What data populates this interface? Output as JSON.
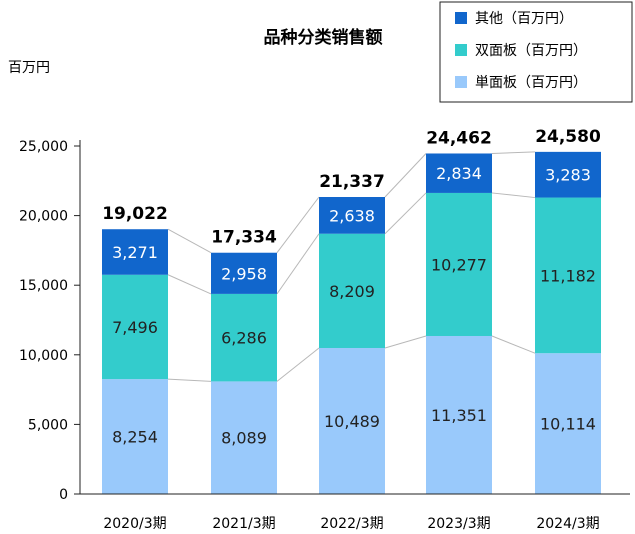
{
  "chart_data": {
    "type": "bar",
    "stacked": true,
    "title": "品种分类销售额",
    "ylabel": "百万円",
    "ylim": [
      0,
      25000
    ],
    "yticks": [
      0,
      5000,
      10000,
      15000,
      20000,
      25000
    ],
    "ytick_labels": [
      "0",
      "5,000",
      "10,000",
      "15,000",
      "20,000",
      "25,000"
    ],
    "categories": [
      "2020/3期",
      "2021/3期",
      "2022/3期",
      "2023/3期",
      "2024/3期"
    ],
    "series": [
      {
        "name": "単面板（百万円）",
        "color": "#99c9fb",
        "values": [
          8254,
          8089,
          10489,
          11351,
          10114
        ],
        "labels": [
          "8,254",
          "8,089",
          "10,489",
          "11,351",
          "10,114"
        ]
      },
      {
        "name": "双面板（百万円）",
        "color": "#33cccc",
        "values": [
          7496,
          6286,
          8209,
          10277,
          11182
        ],
        "labels": [
          "7,496",
          "6,286",
          "8,209",
          "10,277",
          "11,182"
        ]
      },
      {
        "name": "其他（百万円）",
        "color": "#1166cc",
        "values": [
          3271,
          2958,
          2638,
          2834,
          3283
        ],
        "labels": [
          "3,271",
          "2,958",
          "2,638",
          "2,834",
          "3,283"
        ]
      }
    ],
    "totals": [
      19022,
      17334,
      21337,
      24462,
      24580
    ],
    "total_labels": [
      "19,022",
      "17,334",
      "21,337",
      "24,462",
      "24,580"
    ],
    "grid": false,
    "legend_position": "top-right"
  }
}
